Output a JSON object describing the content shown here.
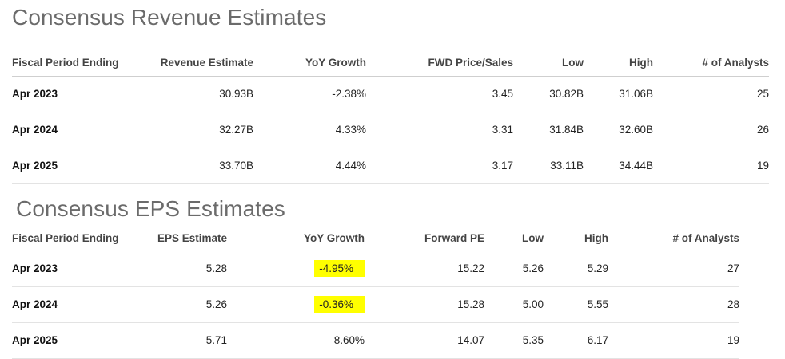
{
  "revenue": {
    "title": "Consensus Revenue Estimates",
    "headers": [
      "Fiscal Period Ending",
      "Revenue Estimate",
      "YoY Growth",
      "FWD Price/Sales",
      "Low",
      "High",
      "# of Analysts"
    ],
    "rows": [
      [
        "Apr 2023",
        "30.93B",
        "-2.38%",
        "3.45",
        "30.82B",
        "31.06B",
        "25"
      ],
      [
        "Apr 2024",
        "32.27B",
        "4.33%",
        "3.31",
        "31.84B",
        "32.60B",
        "26"
      ],
      [
        "Apr 2025",
        "33.70B",
        "4.44%",
        "3.17",
        "33.11B",
        "34.44B",
        "19"
      ]
    ]
  },
  "eps": {
    "title": "Consensus EPS Estimates",
    "headers": [
      "Fiscal Period Ending",
      "EPS Estimate",
      "YoY Growth",
      "Forward PE",
      "Low",
      "High",
      "# of Analysts"
    ],
    "rows": [
      [
        "Apr 2023",
        "5.28",
        "-4.95%",
        "15.22",
        "5.26",
        "5.29",
        "27"
      ],
      [
        "Apr 2024",
        "5.26",
        "-0.36%",
        "15.28",
        "5.00",
        "5.55",
        "28"
      ],
      [
        "Apr 2025",
        "5.71",
        "8.60%",
        "14.07",
        "5.35",
        "6.17",
        "19"
      ]
    ],
    "highlight_color": "#ffff00"
  }
}
